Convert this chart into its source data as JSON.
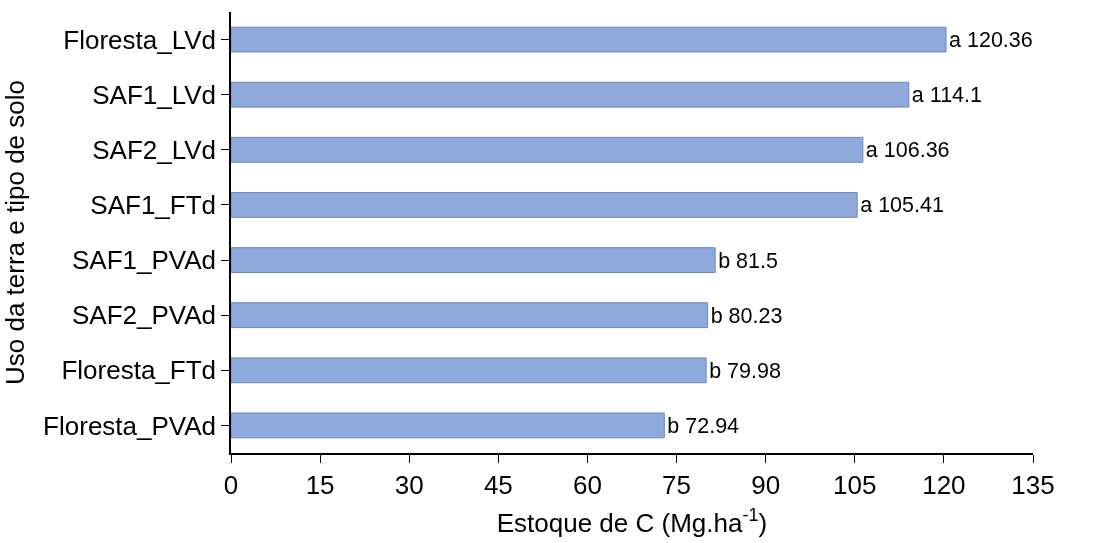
{
  "chart_data": {
    "type": "bar",
    "orientation": "horizontal",
    "xlabel": "Estoque de C (Mg.ha$^{-1}$)",
    "ylabel": "Uso da terra e tipo de solo",
    "categories": [
      "Floresta_LVd",
      "SAF1_LVd",
      "SAF2_LVd",
      "SAF1_FTd",
      "SAF1_PVAd",
      "SAF2_PVAd",
      "Floresta_FTd",
      "Floresta_PVAd"
    ],
    "values": [
      120.36,
      114.1,
      106.36,
      105.41,
      81.5,
      80.23,
      79.98,
      72.94
    ],
    "value_labels": [
      "a 120.36",
      "a 114.1",
      "a 106.36",
      "a 105.41",
      "b 81.5",
      "b 80.23",
      "b 79.98",
      "b 72.94"
    ],
    "color": "#8faadc",
    "xlim": [
      0,
      135
    ],
    "xticks": [
      0,
      15,
      30,
      45,
      60,
      75,
      90,
      105,
      120,
      135
    ]
  }
}
